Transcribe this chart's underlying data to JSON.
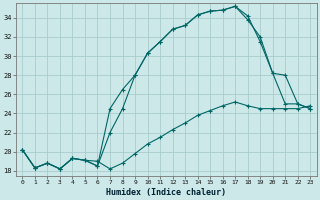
{
  "xlabel": "Humidex (Indice chaleur)",
  "bg_color": "#cce8e8",
  "line_color": "#006666",
  "grid_color": "#aacccc",
  "xlim": [
    -0.5,
    23.5
  ],
  "ylim": [
    17.5,
    35.5
  ],
  "yticks": [
    18,
    20,
    22,
    24,
    26,
    28,
    30,
    32,
    34
  ],
  "xticks": [
    0,
    1,
    2,
    3,
    4,
    5,
    6,
    7,
    8,
    9,
    10,
    11,
    12,
    13,
    14,
    15,
    16,
    17,
    18,
    19,
    20,
    21,
    22,
    23
  ],
  "line1_x": [
    0,
    1,
    2,
    3,
    4,
    5,
    6,
    7,
    8,
    9,
    10,
    11,
    12,
    13,
    14,
    15,
    16,
    17,
    18,
    19,
    20,
    21,
    22,
    23
  ],
  "line1_y": [
    20.2,
    18.3,
    18.8,
    18.2,
    19.3,
    19.1,
    19.0,
    18.2,
    18.8,
    19.8,
    20.8,
    21.5,
    22.3,
    23.0,
    23.8,
    24.3,
    24.8,
    25.2,
    24.8,
    24.5,
    24.5,
    24.5,
    24.5,
    24.8
  ],
  "line2_x": [
    0,
    1,
    2,
    3,
    4,
    5,
    6,
    7,
    8,
    9,
    10,
    11,
    12,
    13,
    14,
    15,
    16,
    17,
    18,
    19,
    20,
    21,
    22,
    23
  ],
  "line2_y": [
    20.2,
    18.3,
    18.8,
    18.2,
    19.3,
    19.1,
    18.5,
    22.0,
    24.5,
    28.0,
    30.3,
    31.5,
    32.8,
    33.2,
    34.3,
    34.7,
    34.8,
    35.2,
    33.8,
    32.0,
    28.2,
    25.0,
    25.0,
    24.5
  ],
  "line3_x": [
    0,
    1,
    2,
    3,
    4,
    5,
    6,
    7,
    8,
    9,
    10,
    11,
    12,
    13,
    14,
    15,
    16,
    17,
    18,
    19,
    20,
    21,
    22,
    23
  ],
  "line3_y": [
    20.2,
    18.3,
    18.8,
    18.2,
    19.3,
    19.1,
    18.5,
    24.5,
    26.5,
    28.0,
    30.3,
    31.5,
    32.8,
    33.2,
    34.3,
    34.7,
    34.8,
    35.2,
    34.2,
    31.5,
    28.2,
    28.0,
    25.0,
    24.5
  ]
}
